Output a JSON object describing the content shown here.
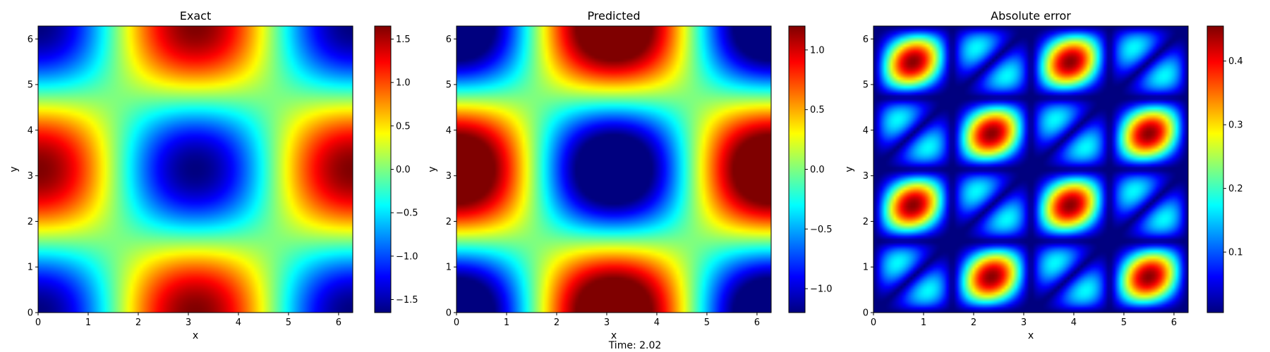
{
  "footer_text": "Time: 2.02",
  "colormap": [
    "#00007f",
    "#0000ff",
    "#007fff",
    "#00ffff",
    "#7fff7f",
    "#ffff00",
    "#ff7f00",
    "#ff0000",
    "#7f0000"
  ],
  "chart_data": [
    {
      "type": "heatmap",
      "title": "Exact",
      "xlabel": "x",
      "ylabel": "y",
      "xlim": [
        0,
        6.283
      ],
      "ylim": [
        0,
        6.283
      ],
      "x_ticks": [
        0,
        1,
        2,
        3,
        4,
        5,
        6
      ],
      "y_ticks": [
        0,
        1,
        2,
        3,
        4,
        5,
        6
      ],
      "field": "-1.65*cos(x)*cos(y)",
      "colorbar": {
        "min": -1.65,
        "max": 1.65,
        "ticks": [
          -1.5,
          -1.0,
          -0.5,
          0.0,
          0.5,
          1.0,
          1.5
        ],
        "tick_labels": [
          "−1.5",
          "−1.0",
          "−0.5",
          "0.0",
          "0.5",
          "1.0",
          "1.5"
        ]
      }
    },
    {
      "type": "heatmap",
      "title": "Predicted",
      "xlabel": "x",
      "ylabel": "y",
      "xlim": [
        0,
        6.283
      ],
      "ylim": [
        0,
        6.283
      ],
      "x_ticks": [
        0,
        1,
        2,
        3,
        4,
        5,
        6
      ],
      "y_ticks": [
        0,
        1,
        2,
        3,
        4,
        5,
        6
      ],
      "field": "-1.65*cos(x)*cos(y)",
      "colorbar": {
        "min": -1.2,
        "max": 1.2,
        "ticks": [
          -1.0,
          -0.5,
          0.0,
          0.5,
          1.0
        ],
        "tick_labels": [
          "−1.0",
          "−0.5",
          "0.0",
          "0.5",
          "1.0"
        ]
      }
    },
    {
      "type": "heatmap",
      "title": "Absolute error",
      "xlabel": "x",
      "ylabel": "y",
      "xlim": [
        0,
        6.283
      ],
      "ylim": [
        0,
        6.283
      ],
      "x_ticks": [
        0,
        1,
        2,
        3,
        4,
        5,
        6
      ],
      "y_ticks": [
        0,
        1,
        2,
        3,
        4,
        5,
        6
      ],
      "field": "0.45*|sin(2x)*sin(2y)*sin(x-y)|",
      "colorbar": {
        "min": 0.005,
        "max": 0.455,
        "ticks": [
          0.1,
          0.2,
          0.3,
          0.4
        ],
        "tick_labels": [
          "0.1",
          "0.2",
          "0.3",
          "0.4"
        ]
      }
    }
  ]
}
